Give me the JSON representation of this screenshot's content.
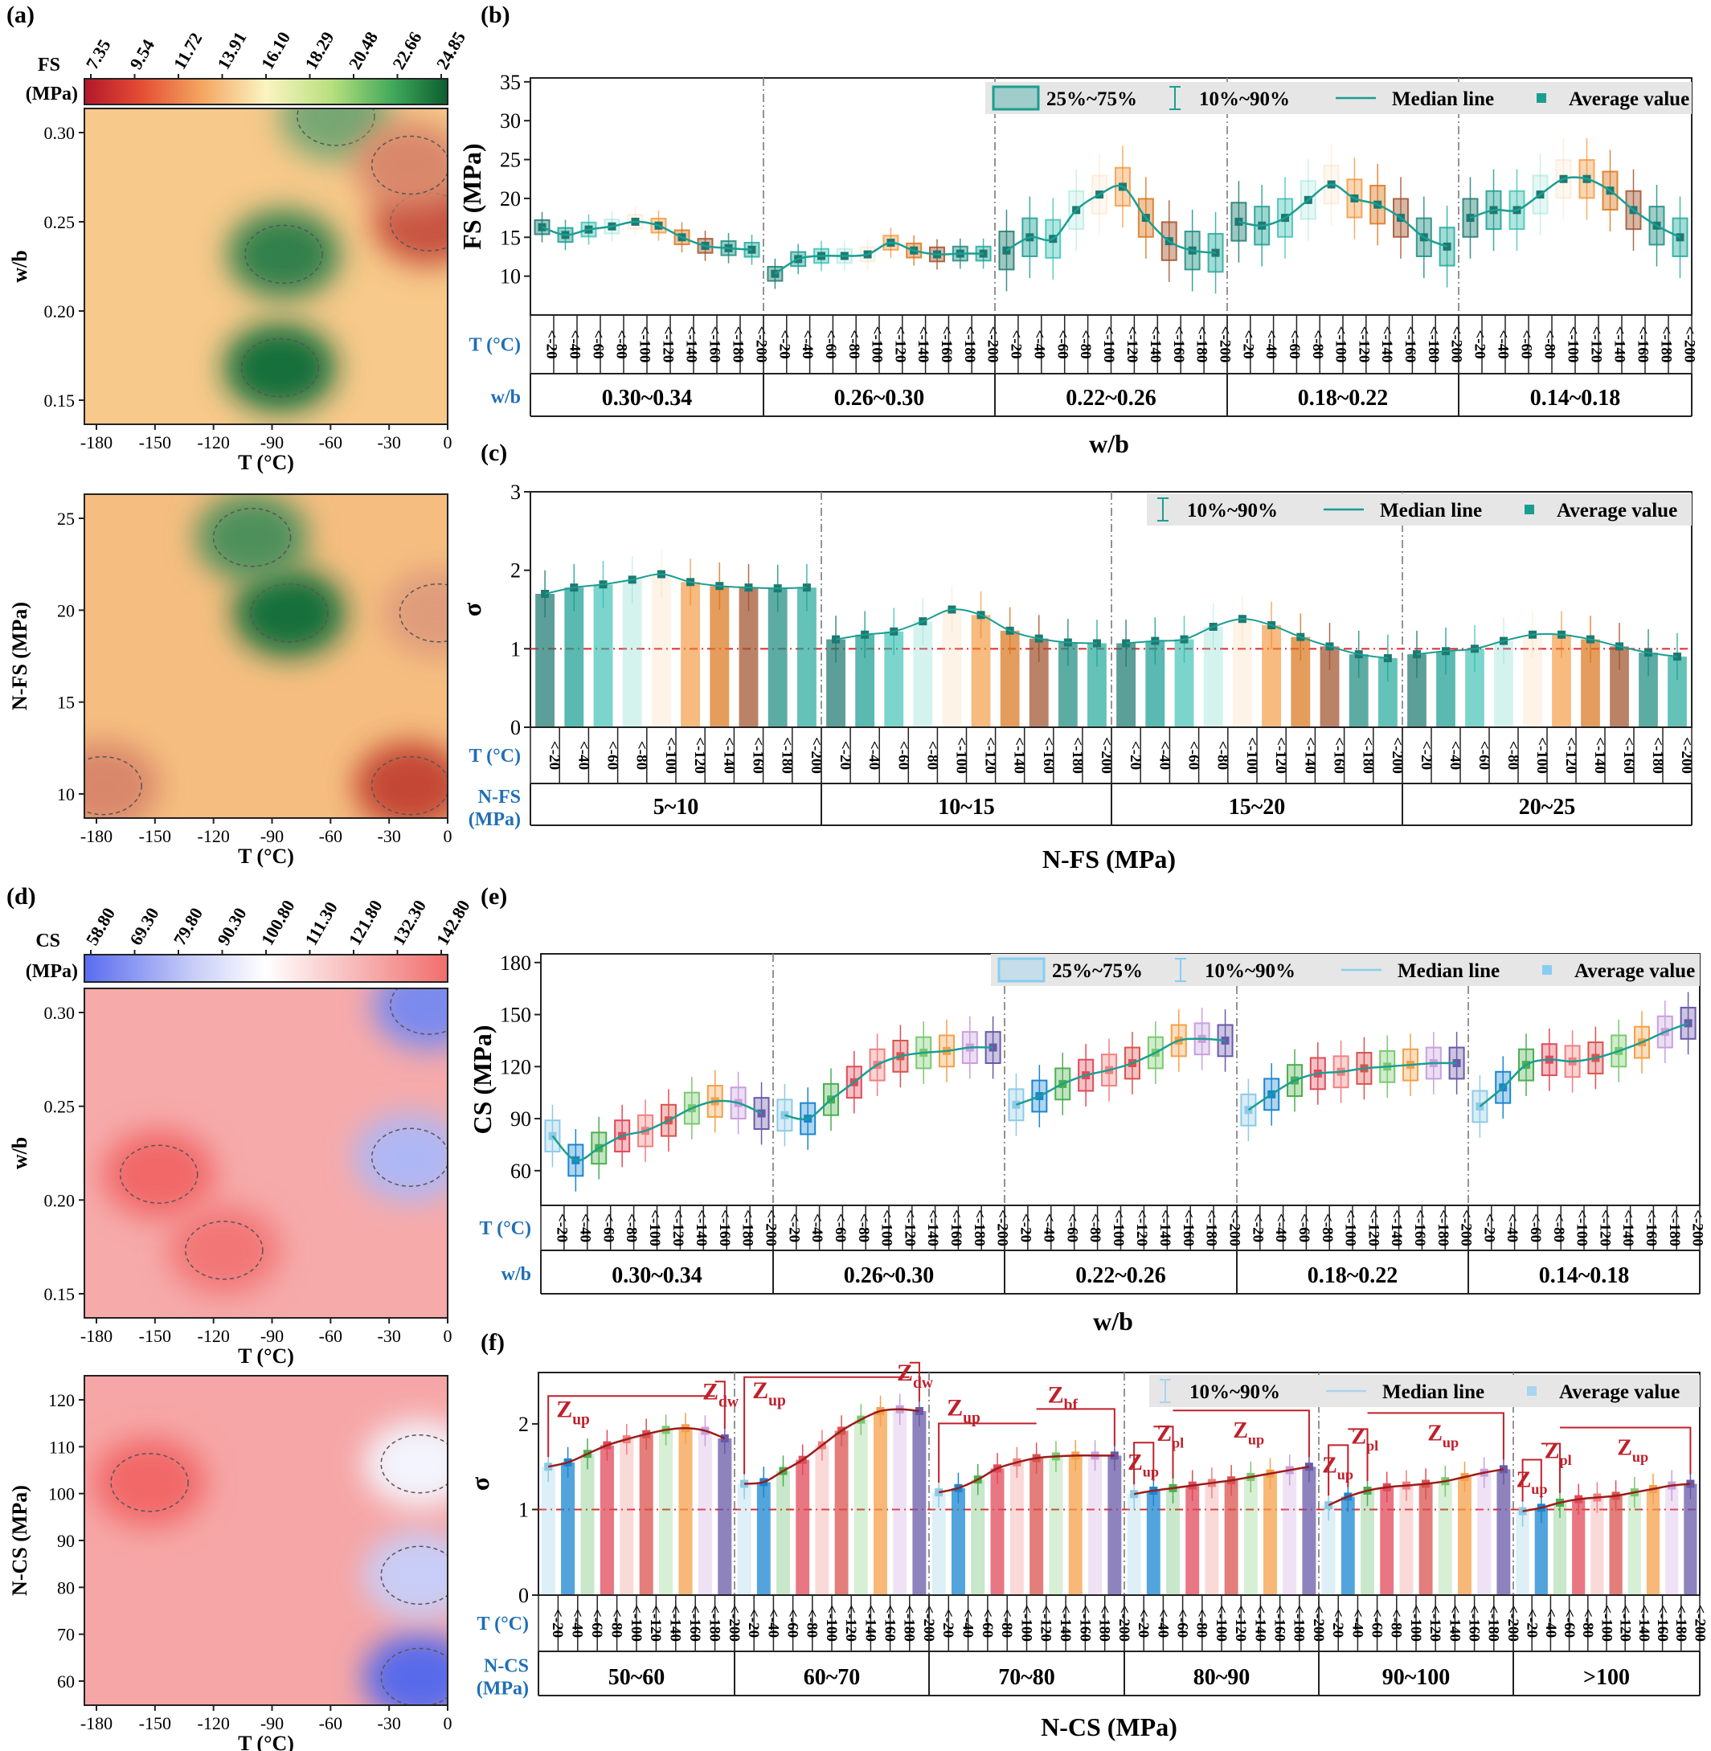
{
  "temps": [
    "<-20",
    "<-40",
    "<-60",
    "<-80",
    "<-100",
    "<-120",
    "<-140",
    "<-160",
    "<-180",
    "<-200"
  ],
  "colors": {
    "teal": "#1a9e92",
    "teal_dark": "#1d7a70",
    "orange": "#f28c28",
    "brown": "#a0522d",
    "red_line": "#e0282e",
    "gray_legend": "#e6e6e6",
    "t_label_blue": "#1f6fb5",
    "zone_red": "#c0202a",
    "cs_palette": [
      "#8ecae6",
      "#1a86d0",
      "#4caf50",
      "#e04a5a",
      "#f08080",
      "#d9534f",
      "#7bc96f",
      "#f5a04a",
      "#c9a0dc",
      "#6a5aa8"
    ]
  },
  "panels": {
    "a": {
      "label": "(a)",
      "cbar_title": "FS",
      "cbar_unit": "(MPa)",
      "cbar_ticks": [
        "7.35",
        "9.54",
        "11.72",
        "13.91",
        "16.10",
        "18.29",
        "20.48",
        "22.66",
        "24.85"
      ],
      "top_ylabel": "w/b",
      "top_yticks": [
        "0.30",
        "0.25",
        "0.20",
        "0.15"
      ],
      "bottom_ylabel": "N-FS (MPa)",
      "bottom_yticks": [
        "25",
        "20",
        "15",
        "10"
      ],
      "xlabel": "T (°C)",
      "xticks": [
        "-180",
        "-150",
        "-120",
        "-90",
        "-60",
        "-30",
        "0"
      ]
    },
    "b": {
      "label": "(b)",
      "ylabel": "FS (MPa)",
      "yticks": [
        "35",
        "30",
        "25",
        "20",
        "15",
        "10"
      ],
      "legend": [
        "25%~75%",
        "10%~90%",
        "Median line",
        "Average value"
      ],
      "row_t_label": "T (°C)",
      "row_group_label": "w/b",
      "groups": [
        "0.30~0.34",
        "0.26~0.30",
        "0.22~0.26",
        "0.18~0.22",
        "0.14~0.18"
      ],
      "xlabel": "w/b"
    },
    "c": {
      "label": "(c)",
      "ylabel": "σ",
      "yticks": [
        "3",
        "2",
        "1",
        "0"
      ],
      "legend": [
        "10%~90%",
        "Median line",
        "Average value"
      ],
      "row_t_label": "T (°C)",
      "row_group_label": "N-FS",
      "row_group_label2": "(MPa)",
      "groups": [
        "5~10",
        "10~15",
        "15~20",
        "20~25"
      ],
      "xlabel": "N-FS (MPa)"
    },
    "d": {
      "label": "(d)",
      "cbar_title": "CS",
      "cbar_unit": "(MPa)",
      "cbar_ticks": [
        "58.80",
        "69.30",
        "79.80",
        "90.30",
        "100.80",
        "111.30",
        "121.80",
        "132.30",
        "142.80"
      ],
      "top_ylabel": "w/b",
      "top_yticks": [
        "0.30",
        "0.25",
        "0.20",
        "0.15"
      ],
      "bottom_ylabel": "N-CS (MPa)",
      "bottom_yticks": [
        "120",
        "110",
        "100",
        "90",
        "80",
        "70",
        "60"
      ],
      "xlabel": "T (°C)",
      "xticks": [
        "-180",
        "-150",
        "-120",
        "-90",
        "-60",
        "-30",
        "0"
      ]
    },
    "e": {
      "label": "(e)",
      "ylabel": "CS (MPa)",
      "yticks": [
        "180",
        "150",
        "120",
        "90",
        "60"
      ],
      "legend": [
        "25%~75%",
        "10%~90%",
        "Median line",
        "Average value"
      ],
      "row_t_label": "T (°C)",
      "row_group_label": "w/b",
      "groups": [
        "0.30~0.34",
        "0.26~0.30",
        "0.22~0.26",
        "0.18~0.22",
        "0.14~0.18"
      ],
      "xlabel": "w/b"
    },
    "f": {
      "label": "(f)",
      "ylabel": "σ",
      "yticks": [
        "2",
        "1",
        "0"
      ],
      "legend": [
        "10%~90%",
        "Median line",
        "Average value"
      ],
      "row_t_label": "T (°C)",
      "row_group_label": "N-CS",
      "row_group_label2": "(MPa)",
      "groups": [
        "50~60",
        "60~70",
        "70~80",
        "80~90",
        "90~100",
        ">100"
      ],
      "xlabel": "N-CS (MPa)",
      "zones": [
        [
          {
            "t": "Z",
            "s": "up"
          },
          {
            "t": "Z",
            "s": "dw"
          }
        ],
        [
          {
            "t": "Z",
            "s": "up"
          },
          {
            "t": "Z",
            "s": "dw"
          }
        ],
        [
          {
            "t": "Z",
            "s": "up"
          },
          {
            "t": "Z",
            "s": "bf"
          }
        ],
        [
          {
            "t": "Z",
            "s": "up"
          },
          {
            "t": "Z",
            "s": "pl"
          },
          {
            "t": "Z",
            "s": "up"
          }
        ],
        [
          {
            "t": "Z",
            "s": "up"
          },
          {
            "t": "Z",
            "s": "pl"
          },
          {
            "t": "Z",
            "s": "up"
          }
        ],
        [
          {
            "t": "Z",
            "s": "up"
          },
          {
            "t": "Z",
            "s": "pl"
          },
          {
            "t": "Z",
            "s": "up"
          }
        ]
      ]
    }
  },
  "chart_data": [
    {
      "type": "heatmap",
      "panel": "a-top",
      "title": "",
      "xlabel": "T (°C)",
      "ylabel": "w/b",
      "xlim": [
        -195,
        0
      ],
      "ylim": [
        0.14,
        0.335
      ],
      "colorbar_label": "FS (MPa)",
      "colorbar_range": [
        7.35,
        24.85
      ],
      "hotspots": [
        {
          "x": -90,
          "y": 0.175,
          "v": 24.5
        },
        {
          "x": -88,
          "y": 0.245,
          "v": 23.5
        },
        {
          "x": -60,
          "y": 0.33,
          "v": 21
        },
        {
          "x": -10,
          "y": 0.265,
          "v": 8.5
        },
        {
          "x": -20,
          "y": 0.3,
          "v": 11
        }
      ]
    },
    {
      "type": "heatmap",
      "panel": "a-bottom",
      "title": "",
      "xlabel": "T (°C)",
      "ylabel": "N-FS (MPa)",
      "xlim": [
        -195,
        0
      ],
      "ylim": [
        10,
        25
      ],
      "colorbar_label": "FS (MPa)",
      "colorbar_range": [
        7.35,
        24.85
      ],
      "hotspots": [
        {
          "x": -85,
          "y": 19.5,
          "v": 24.5
        },
        {
          "x": -105,
          "y": 23,
          "v": 22.5
        },
        {
          "x": -20,
          "y": 11.5,
          "v": 8
        },
        {
          "x": -185,
          "y": 11.5,
          "v": 11
        },
        {
          "x": -5,
          "y": 19.5,
          "v": 12
        }
      ]
    },
    {
      "type": "box",
      "panel": "b",
      "ylabel": "FS (MPa)",
      "ylim": [
        5,
        35
      ],
      "categories": [
        "<-20",
        "<-40",
        "<-60",
        "<-80",
        "<-100",
        "<-120",
        "<-140",
        "<-160",
        "<-180",
        "<-200"
      ],
      "groups": [
        "0.30~0.34",
        "0.26~0.30",
        "0.22~0.26",
        "0.18~0.22",
        "0.14~0.18"
      ],
      "series": [
        {
          "name": "0.30~0.34",
          "mean": [
            16.3,
            15.3,
            16.0,
            16.4,
            17.0,
            16.5,
            15.0,
            13.9,
            13.6,
            13.4
          ]
        },
        {
          "name": "0.26~0.30",
          "mean": [
            10.3,
            12.2,
            12.6,
            12.6,
            12.8,
            14.3,
            13.3,
            12.8,
            12.9,
            12.9
          ]
        },
        {
          "name": "0.22~0.26",
          "mean": [
            13.3,
            15.0,
            14.8,
            18.5,
            20.5,
            21.5,
            17.5,
            14.5,
            13.3,
            13.0
          ]
        },
        {
          "name": "0.18~0.22",
          "mean": [
            17.0,
            16.5,
            17.5,
            19.8,
            21.8,
            20.0,
            19.2,
            17.5,
            15.0,
            13.8
          ]
        },
        {
          "name": "0.14~0.18",
          "mean": [
            17.5,
            18.5,
            18.5,
            20.5,
            22.5,
            22.5,
            21.0,
            18.5,
            16.5,
            15.0
          ]
        }
      ]
    },
    {
      "type": "bar",
      "panel": "c",
      "ylabel": "σ",
      "ylim": [
        0,
        3
      ],
      "reference_line": 1,
      "categories": [
        "<-20",
        "<-40",
        "<-60",
        "<-80",
        "<-100",
        "<-120",
        "<-140",
        "<-160",
        "<-180",
        "<-200"
      ],
      "groups": [
        "5~10",
        "10~15",
        "15~20",
        "20~25"
      ],
      "series": [
        {
          "name": "5~10",
          "values": [
            1.7,
            1.78,
            1.82,
            1.88,
            1.95,
            1.85,
            1.8,
            1.78,
            1.77,
            1.78
          ]
        },
        {
          "name": "10~15",
          "values": [
            1.12,
            1.18,
            1.22,
            1.35,
            1.5,
            1.43,
            1.23,
            1.13,
            1.08,
            1.07
          ]
        },
        {
          "name": "15~20",
          "values": [
            1.07,
            1.1,
            1.12,
            1.28,
            1.38,
            1.3,
            1.15,
            1.03,
            0.93,
            0.88
          ]
        },
        {
          "name": "20~25",
          "values": [
            0.93,
            0.97,
            1.0,
            1.1,
            1.18,
            1.18,
            1.12,
            1.03,
            0.95,
            0.9
          ]
        }
      ]
    },
    {
      "type": "heatmap",
      "panel": "d-top",
      "title": "",
      "xlabel": "T (°C)",
      "ylabel": "w/b",
      "xlim": [
        -195,
        0
      ],
      "ylim": [
        0.14,
        0.335
      ],
      "colorbar_label": "CS (MPa)",
      "colorbar_range": [
        58.8,
        142.8
      ],
      "hotspots": [
        {
          "x": -155,
          "y": 0.225,
          "v": 142
        },
        {
          "x": -120,
          "y": 0.18,
          "v": 138
        },
        {
          "x": -10,
          "y": 0.325,
          "v": 70
        },
        {
          "x": -20,
          "y": 0.235,
          "v": 82
        }
      ]
    },
    {
      "type": "heatmap",
      "panel": "d-bottom",
      "title": "",
      "xlabel": "T (°C)",
      "ylabel": "N-CS (MPa)",
      "xlim": [
        -195,
        0
      ],
      "ylim": [
        52,
        123
      ],
      "colorbar_label": "CS (MPa)",
      "colorbar_range": [
        58.8,
        142.8
      ],
      "hotspots": [
        {
          "x": -160,
          "y": 100,
          "v": 142
        },
        {
          "x": -15,
          "y": 58,
          "v": 62
        },
        {
          "x": -15,
          "y": 80,
          "v": 88
        },
        {
          "x": -15,
          "y": 104,
          "v": 98
        }
      ]
    },
    {
      "type": "box",
      "panel": "e",
      "ylabel": "CS (MPa)",
      "ylim": [
        40,
        185
      ],
      "categories": [
        "<-20",
        "<-40",
        "<-60",
        "<-80",
        "<-100",
        "<-120",
        "<-140",
        "<-160",
        "<-180",
        "<-200"
      ],
      "groups": [
        "0.30~0.34",
        "0.26~0.30",
        "0.22~0.26",
        "0.18~0.22",
        "0.14~0.18"
      ],
      "series": [
        {
          "name": "0.30~0.34",
          "mean": [
            80,
            66,
            73,
            80,
            83,
            89,
            96,
            100,
            99,
            93
          ]
        },
        {
          "name": "0.26~0.30",
          "mean": [
            92,
            90,
            101,
            111,
            121,
            126,
            128,
            129,
            131,
            131
          ]
        },
        {
          "name": "0.22~0.26",
          "mean": [
            98,
            103,
            110,
            115,
            118,
            122,
            128,
            135,
            136,
            135
          ]
        },
        {
          "name": "0.18~0.22",
          "mean": [
            95,
            104,
            112,
            116,
            117,
            119,
            120,
            121,
            122,
            122
          ]
        },
        {
          "name": "0.14~0.18",
          "mean": [
            97,
            108,
            121,
            124,
            123,
            125,
            129,
            134,
            140,
            145
          ]
        }
      ]
    },
    {
      "type": "bar",
      "panel": "f",
      "ylabel": "σ",
      "ylim": [
        0,
        2.6
      ],
      "reference_line": 1,
      "categories": [
        "<-20",
        "<-40",
        "<-60",
        "<-80",
        "<-100",
        "<-120",
        "<-140",
        "<-160",
        "<-180",
        "<-200"
      ],
      "groups": [
        "50~60",
        "60~70",
        "70~80",
        "80~90",
        "90~100",
        ">100"
      ],
      "series": [
        {
          "name": "50~60",
          "values": [
            1.5,
            1.55,
            1.65,
            1.75,
            1.82,
            1.88,
            1.93,
            1.95,
            1.92,
            1.83
          ]
        },
        {
          "name": "60~70",
          "values": [
            1.3,
            1.32,
            1.45,
            1.58,
            1.75,
            1.92,
            2.05,
            2.15,
            2.17,
            2.15
          ]
        },
        {
          "name": "70~80",
          "values": [
            1.2,
            1.25,
            1.35,
            1.48,
            1.55,
            1.6,
            1.62,
            1.63,
            1.63,
            1.63
          ]
        },
        {
          "name": "80~90",
          "values": [
            1.18,
            1.22,
            1.25,
            1.28,
            1.31,
            1.34,
            1.38,
            1.42,
            1.46,
            1.5
          ]
        },
        {
          "name": "90~100",
          "values": [
            1.05,
            1.15,
            1.22,
            1.26,
            1.28,
            1.3,
            1.33,
            1.38,
            1.43,
            1.47
          ]
        },
        {
          "name": ">100",
          "values": [
            0.98,
            1.02,
            1.08,
            1.12,
            1.14,
            1.16,
            1.2,
            1.24,
            1.28,
            1.3
          ]
        }
      ]
    }
  ]
}
